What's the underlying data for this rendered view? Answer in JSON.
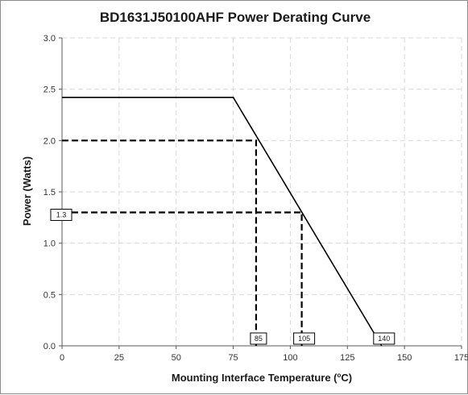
{
  "chart_data": {
    "type": "line",
    "title": "BD1631J50100AHF Power Derating Curve",
    "xlabel": "Mounting Interface Temperature (°C)",
    "xlabel_main": "Mounting Interface Temperature (",
    "xlabel_sup": "o",
    "xlabel_tail": "C)",
    "ylabel": "Power (Watts)",
    "xlim": [
      0,
      175
    ],
    "ylim": [
      0,
      3.0
    ],
    "x_ticks": [
      0,
      25,
      50,
      75,
      100,
      125,
      150,
      175
    ],
    "x_tick_labels": [
      "0",
      "25",
      "50",
      "75",
      "100",
      "125",
      "150",
      "175"
    ],
    "y_ticks": [
      0,
      0.5,
      1.0,
      1.5,
      2.0,
      2.5,
      3.0
    ],
    "y_tick_labels": [
      "0.0",
      "0.5",
      "1.0",
      "1.5",
      "2.0",
      "2.5",
      "3.0"
    ],
    "grid": true,
    "series": [
      {
        "x": [
          0,
          75,
          140
        ],
        "y": [
          2.42,
          2.42,
          0
        ]
      }
    ],
    "guides": [
      {
        "x": 85,
        "y": 2.0
      },
      {
        "x": 105,
        "y": 1.3
      }
    ],
    "annotations": [
      {
        "text": "85",
        "x": 85,
        "y": 0,
        "anchor": "x-axis"
      },
      {
        "text": "105",
        "x": 105,
        "y": 0,
        "anchor": "x-axis"
      },
      {
        "text": "140",
        "x": 140,
        "y": 0,
        "anchor": "x-axis"
      },
      {
        "text": "1.3",
        "x": 0,
        "y": 1.3,
        "anchor": "y-axis"
      }
    ],
    "colors": {
      "curve": "#000000",
      "grid": "#d9d9d9",
      "frame": "#8c8c8c"
    }
  }
}
